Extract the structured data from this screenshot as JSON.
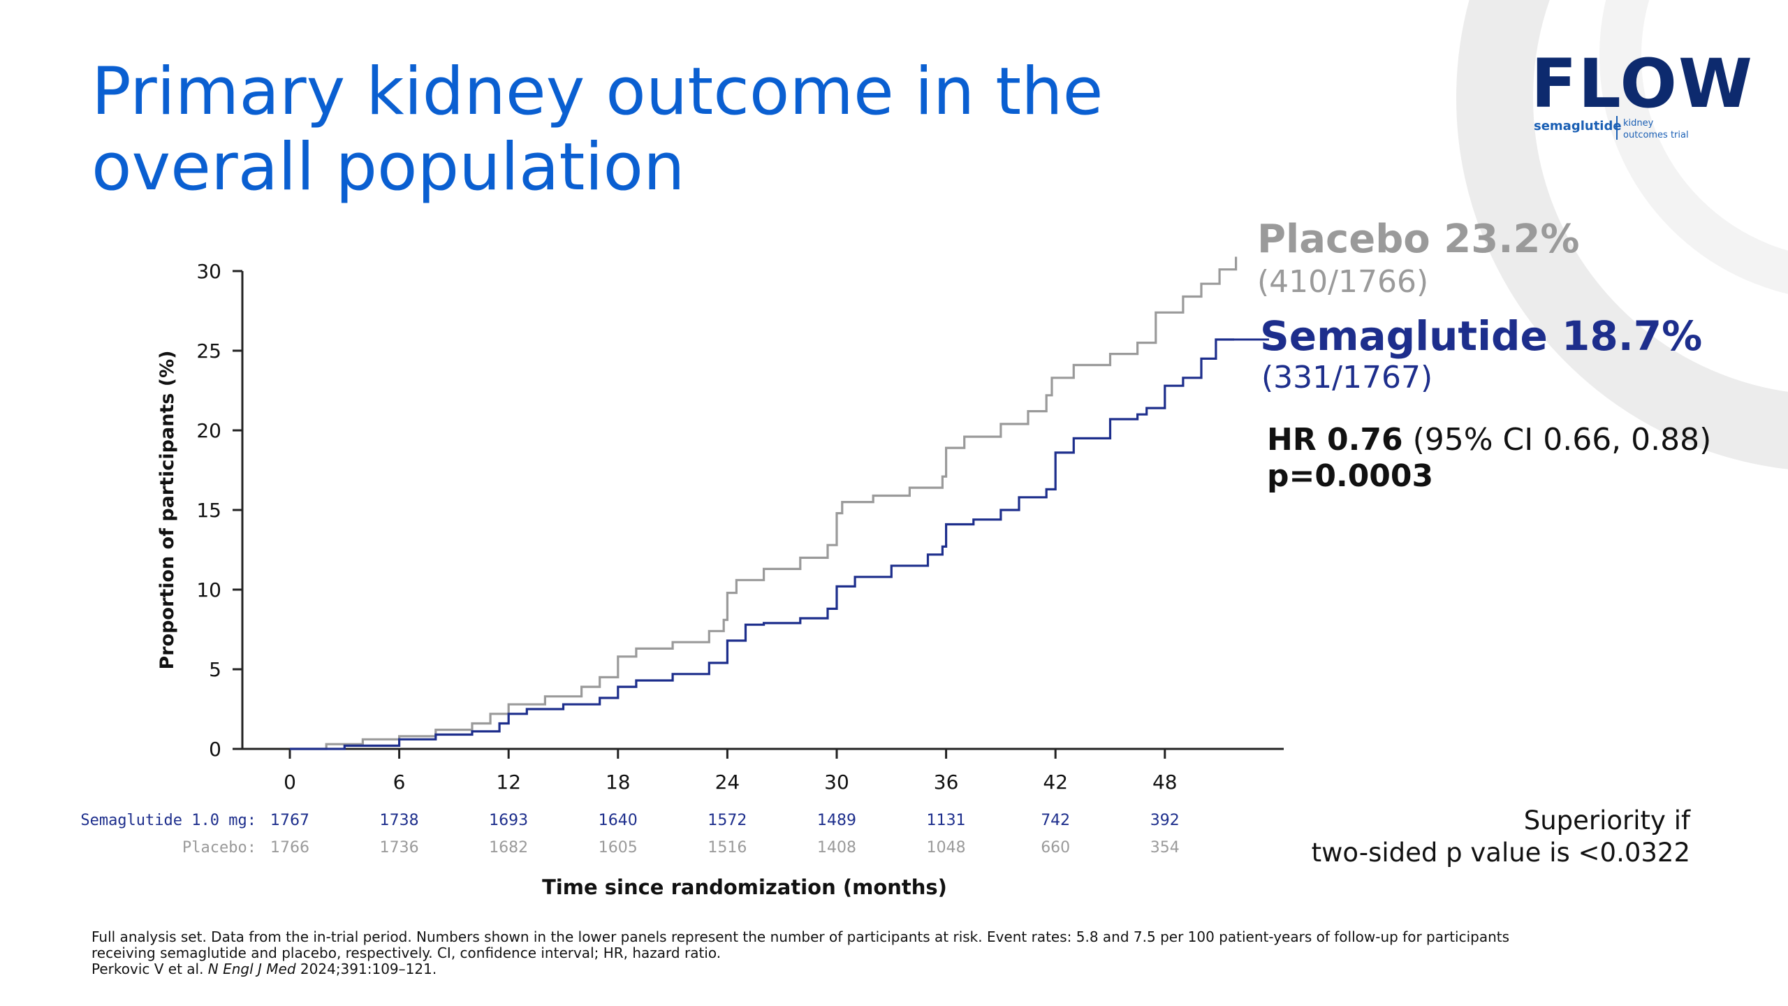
{
  "slide": {
    "title": "Primary kidney outcome in the overall population",
    "logo": {
      "word": "FLOW",
      "drug": "semaglutide",
      "tagline": "kidney outcomes trial"
    }
  },
  "annotations": {
    "placebo_rate": "Placebo 23.2%",
    "placebo_count": "(410/1766)",
    "semaglutide_rate": "Semaglutide 18.7%",
    "semaglutide_count": "(331/1767)",
    "hr_label": "HR 0.76",
    "hr_ci": " (95% CI 0.66, 0.88)",
    "p_value": "p=0.0003",
    "superiority_line1": "Superiority if",
    "superiority_line2": "two-sided p value is <0.0322"
  },
  "footnote": {
    "line1": "Full analysis set. Data from the in-trial period. Numbers shown in the lower panels represent the number of participants at risk. Event rates: 5.8 and 7.5 per 100 patient-years of follow-up for participants",
    "line2": "receiving semaglutide and placebo, respectively. CI, confidence interval; HR, hazard ratio.",
    "citation_authors": "Perkovic V et al. ",
    "citation_journal": "N Engl J Med",
    "citation_ref": " 2024;391:109–121."
  },
  "colors": {
    "title": "#0a5fd1",
    "placebo": "#9a9a9a",
    "semaglutide": "#1d2e8c",
    "axis": "#222222"
  },
  "chart_data": {
    "type": "line",
    "xlabel": "Time since randomization (months)",
    "ylabel": "Proportion of participants (%)",
    "xlim": [
      0,
      52
    ],
    "ylim": [
      0,
      30
    ],
    "xticks": [
      0,
      6,
      12,
      18,
      24,
      30,
      36,
      42,
      48
    ],
    "yticks": [
      0,
      5,
      10,
      15,
      20,
      25,
      30
    ],
    "series": [
      {
        "name": "Placebo",
        "color": "#9a9a9a",
        "points": [
          [
            0,
            0
          ],
          [
            2,
            0.3
          ],
          [
            4,
            0.6
          ],
          [
            6,
            0.8
          ],
          [
            8,
            1.2
          ],
          [
            10,
            1.6
          ],
          [
            11,
            2.2
          ],
          [
            12,
            2.8
          ],
          [
            14,
            3.3
          ],
          [
            16,
            3.9
          ],
          [
            17,
            4.5
          ],
          [
            18,
            5.8
          ],
          [
            19,
            6.3
          ],
          [
            21,
            6.7
          ],
          [
            23,
            7.4
          ],
          [
            23.8,
            8.1
          ],
          [
            24,
            9.8
          ],
          [
            24.5,
            10.6
          ],
          [
            26,
            11.3
          ],
          [
            28,
            12.0
          ],
          [
            29.5,
            12.8
          ],
          [
            30,
            14.8
          ],
          [
            30.3,
            15.5
          ],
          [
            32,
            15.9
          ],
          [
            34,
            16.4
          ],
          [
            35.8,
            17.1
          ],
          [
            36,
            18.9
          ],
          [
            37,
            19.6
          ],
          [
            39,
            20.4
          ],
          [
            40.5,
            21.2
          ],
          [
            41.5,
            22.2
          ],
          [
            41.8,
            23.3
          ],
          [
            43,
            24.1
          ],
          [
            45,
            24.8
          ],
          [
            46.5,
            25.5
          ],
          [
            47.5,
            27.4
          ],
          [
            49,
            28.4
          ],
          [
            50,
            29.2
          ],
          [
            51,
            30.1
          ],
          [
            51.8,
            30.1
          ],
          [
            51.9,
            30.9
          ]
        ]
      },
      {
        "name": "Semaglutide",
        "color": "#1d2e8c",
        "points": [
          [
            0,
            0
          ],
          [
            3,
            0.2
          ],
          [
            6,
            0.6
          ],
          [
            8,
            0.9
          ],
          [
            10,
            1.1
          ],
          [
            11.5,
            1.6
          ],
          [
            12,
            2.2
          ],
          [
            13,
            2.5
          ],
          [
            15,
            2.8
          ],
          [
            17,
            3.2
          ],
          [
            18,
            3.9
          ],
          [
            19,
            4.3
          ],
          [
            21,
            4.7
          ],
          [
            23,
            5.4
          ],
          [
            24,
            6.8
          ],
          [
            25,
            7.8
          ],
          [
            26,
            7.9
          ],
          [
            28,
            8.2
          ],
          [
            29.5,
            8.8
          ],
          [
            30,
            10.2
          ],
          [
            31,
            10.8
          ],
          [
            33,
            11.5
          ],
          [
            35,
            12.2
          ],
          [
            35.8,
            12.7
          ],
          [
            36,
            14.1
          ],
          [
            37.5,
            14.4
          ],
          [
            39,
            15.0
          ],
          [
            40,
            15.8
          ],
          [
            41.5,
            16.3
          ],
          [
            42,
            18.6
          ],
          [
            43,
            19.5
          ],
          [
            45,
            20.7
          ],
          [
            46.5,
            21.0
          ],
          [
            47,
            21.4
          ],
          [
            48,
            22.8
          ],
          [
            49,
            23.3
          ],
          [
            50,
            24.5
          ],
          [
            50.8,
            25.7
          ],
          [
            51.8,
            25.7
          ]
        ]
      }
    ],
    "at_risk": {
      "rows": [
        {
          "label": "Semaglutide 1.0 mg:",
          "color": "#1d2e8c",
          "values": [
            1767,
            1738,
            1693,
            1640,
            1572,
            1489,
            1131,
            742,
            392
          ]
        },
        {
          "label": "Placebo:",
          "color": "#9a9a9a",
          "values": [
            1766,
            1736,
            1682,
            1605,
            1516,
            1408,
            1048,
            660,
            354
          ]
        }
      ]
    }
  }
}
